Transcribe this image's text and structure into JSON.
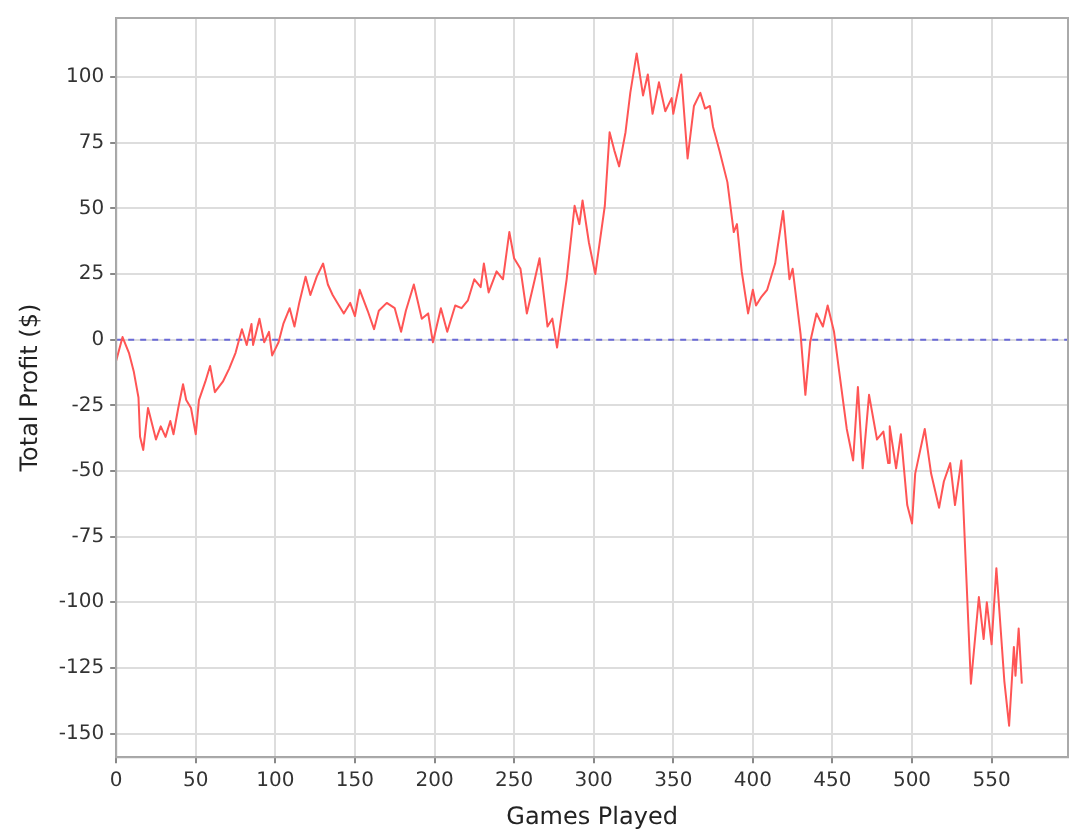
{
  "chart_data": {
    "type": "line",
    "xlabel": "Games Played",
    "ylabel": "Total Profit ($)",
    "xlim": [
      0,
      598
    ],
    "ylim": [
      -159,
      122.5
    ],
    "xticks": [
      0,
      50,
      100,
      150,
      200,
      250,
      300,
      350,
      400,
      450,
      500,
      550
    ],
    "yticks": [
      -150,
      -125,
      -100,
      -75,
      -50,
      -25,
      0,
      25,
      50,
      75,
      100
    ],
    "grid": true,
    "legend": false,
    "marker": "none",
    "line_style": "solid",
    "ref_lines": [
      {
        "axis": "y",
        "value": 0,
        "color": "#6a6ad8",
        "line_style": "dashed"
      }
    ],
    "series": [
      {
        "color": "#ff5555",
        "x": [
          0,
          4,
          8,
          11,
          14,
          15,
          17,
          20,
          25,
          28,
          31,
          34,
          36,
          39,
          42,
          44,
          47,
          50,
          52,
          56,
          59,
          62,
          67,
          71,
          75,
          79,
          82,
          85,
          86,
          90,
          93,
          96,
          98,
          102,
          105,
          109,
          112,
          115,
          119,
          122,
          126,
          130,
          133,
          136,
          139,
          143,
          147,
          150,
          153,
          158,
          162,
          165,
          170,
          175,
          179,
          182,
          187,
          192,
          196,
          199,
          204,
          208,
          213,
          217,
          221,
          225,
          229,
          231,
          234,
          239,
          243,
          247,
          250,
          254,
          258,
          263,
          266,
          271,
          274,
          277,
          283,
          288,
          291,
          293,
          297,
          301,
          307,
          310,
          313,
          316,
          320,
          323,
          327,
          331,
          334,
          337,
          341,
          345,
          349,
          350,
          355,
          359,
          363,
          367,
          370,
          373,
          375,
          379,
          384,
          388,
          390,
          393,
          397,
          400,
          402,
          405,
          409,
          414,
          419,
          423,
          425,
          430,
          433,
          436,
          440,
          444,
          447,
          451,
          454,
          459,
          463,
          466,
          469,
          473,
          478,
          482,
          485,
          486,
          490,
          493,
          497,
          500,
          502,
          508,
          512,
          517,
          520,
          524,
          527,
          531,
          537,
          542,
          545,
          547,
          550,
          553,
          558,
          561,
          564,
          565,
          567,
          569
        ],
        "values": [
          -8,
          1,
          -5,
          -12,
          -22,
          -37,
          -42,
          -26,
          -38,
          -33,
          -37,
          -31,
          -36,
          -26,
          -17,
          -23,
          -26,
          -36,
          -23,
          -16,
          -10,
          -20,
          -16,
          -11,
          -5,
          4,
          -2,
          6,
          -2,
          8,
          -1,
          3,
          -6,
          -1,
          6,
          12,
          5,
          14,
          24,
          17,
          24,
          29,
          21,
          17,
          14,
          10,
          14,
          9,
          19,
          11,
          4,
          11,
          14,
          12,
          3,
          11,
          21,
          8,
          10,
          -1,
          12,
          3,
          13,
          12,
          15,
          23,
          20,
          29,
          18,
          26,
          23,
          41,
          31,
          27,
          10,
          23,
          31,
          5,
          8,
          -3,
          23,
          51,
          44,
          53,
          37,
          25,
          51,
          79,
          72,
          66,
          79,
          94,
          109,
          93,
          101,
          86,
          98,
          87,
          92,
          86,
          101,
          69,
          89,
          94,
          88,
          89,
          81,
          72,
          60,
          41,
          44,
          26,
          10,
          19,
          13,
          16,
          19,
          29,
          49,
          23,
          27,
          2,
          -21,
          -1,
          10,
          5,
          13,
          3,
          -11,
          -34,
          -46,
          -18,
          -49,
          -21,
          -38,
          -35,
          -47,
          -33,
          -49,
          -36,
          -63,
          -70,
          -51,
          -34,
          -51,
          -64,
          -54,
          -47,
          -63,
          -46,
          -131,
          -98,
          -114,
          -100,
          -116,
          -87,
          -130,
          -147,
          -117,
          -128,
          -110,
          -131
        ]
      }
    ]
  }
}
